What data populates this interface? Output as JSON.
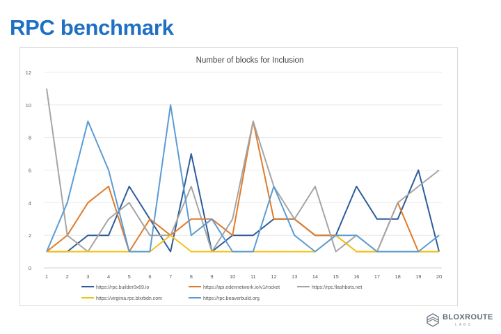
{
  "slide": {
    "title": "RPC benchmark"
  },
  "logo": {
    "name": "BLOXROUTE",
    "sub": "LABS"
  },
  "chart_data": {
    "type": "line",
    "title": "Number of blocks for Inclusion",
    "xlabel": "",
    "ylabel": "",
    "x": [
      1,
      2,
      3,
      4,
      5,
      6,
      7,
      8,
      9,
      10,
      11,
      12,
      13,
      14,
      15,
      16,
      17,
      18,
      19,
      20
    ],
    "ylim": [
      0,
      12
    ],
    "yticks": [
      0,
      2,
      4,
      6,
      8,
      10,
      12
    ],
    "grid": true,
    "legend_position": "bottom",
    "series": [
      {
        "name": "https://rpc.builder0x69.io",
        "color": "#2e5c9a",
        "values": [
          1,
          1,
          2,
          2,
          5,
          3,
          1,
          7,
          1,
          2,
          2,
          3,
          3,
          2,
          2,
          5,
          3,
          3,
          6,
          1
        ]
      },
      {
        "name": "https://api.edennetwork.io/v1/rocket",
        "color": "#e07b2b",
        "values": [
          1,
          2,
          4,
          5,
          1,
          3,
          2,
          3,
          3,
          2,
          9,
          3,
          3,
          2,
          2,
          1,
          1,
          4,
          1,
          1
        ]
      },
      {
        "name": "https://rpc.flashbots.net",
        "color": "#a5a5a5",
        "values": [
          11,
          2,
          1,
          3,
          4,
          2,
          2,
          5,
          1,
          3,
          9,
          5,
          3,
          5,
          1,
          2,
          1,
          4,
          5,
          6
        ]
      },
      {
        "name": "https://virginia.rpc.blxrbdn.com",
        "color": "#f2c21a",
        "values": [
          1,
          1,
          1,
          1,
          1,
          1,
          2,
          1,
          1,
          1,
          1,
          1,
          1,
          1,
          2,
          1,
          1,
          1,
          1,
          1
        ]
      },
      {
        "name": "https://rpc.beaverbuild.org",
        "color": "#5b9bd5",
        "values": [
          1,
          4,
          9,
          6,
          1,
          1,
          10,
          2,
          3,
          1,
          1,
          5,
          2,
          1,
          2,
          2,
          1,
          1,
          1,
          2
        ]
      }
    ]
  }
}
